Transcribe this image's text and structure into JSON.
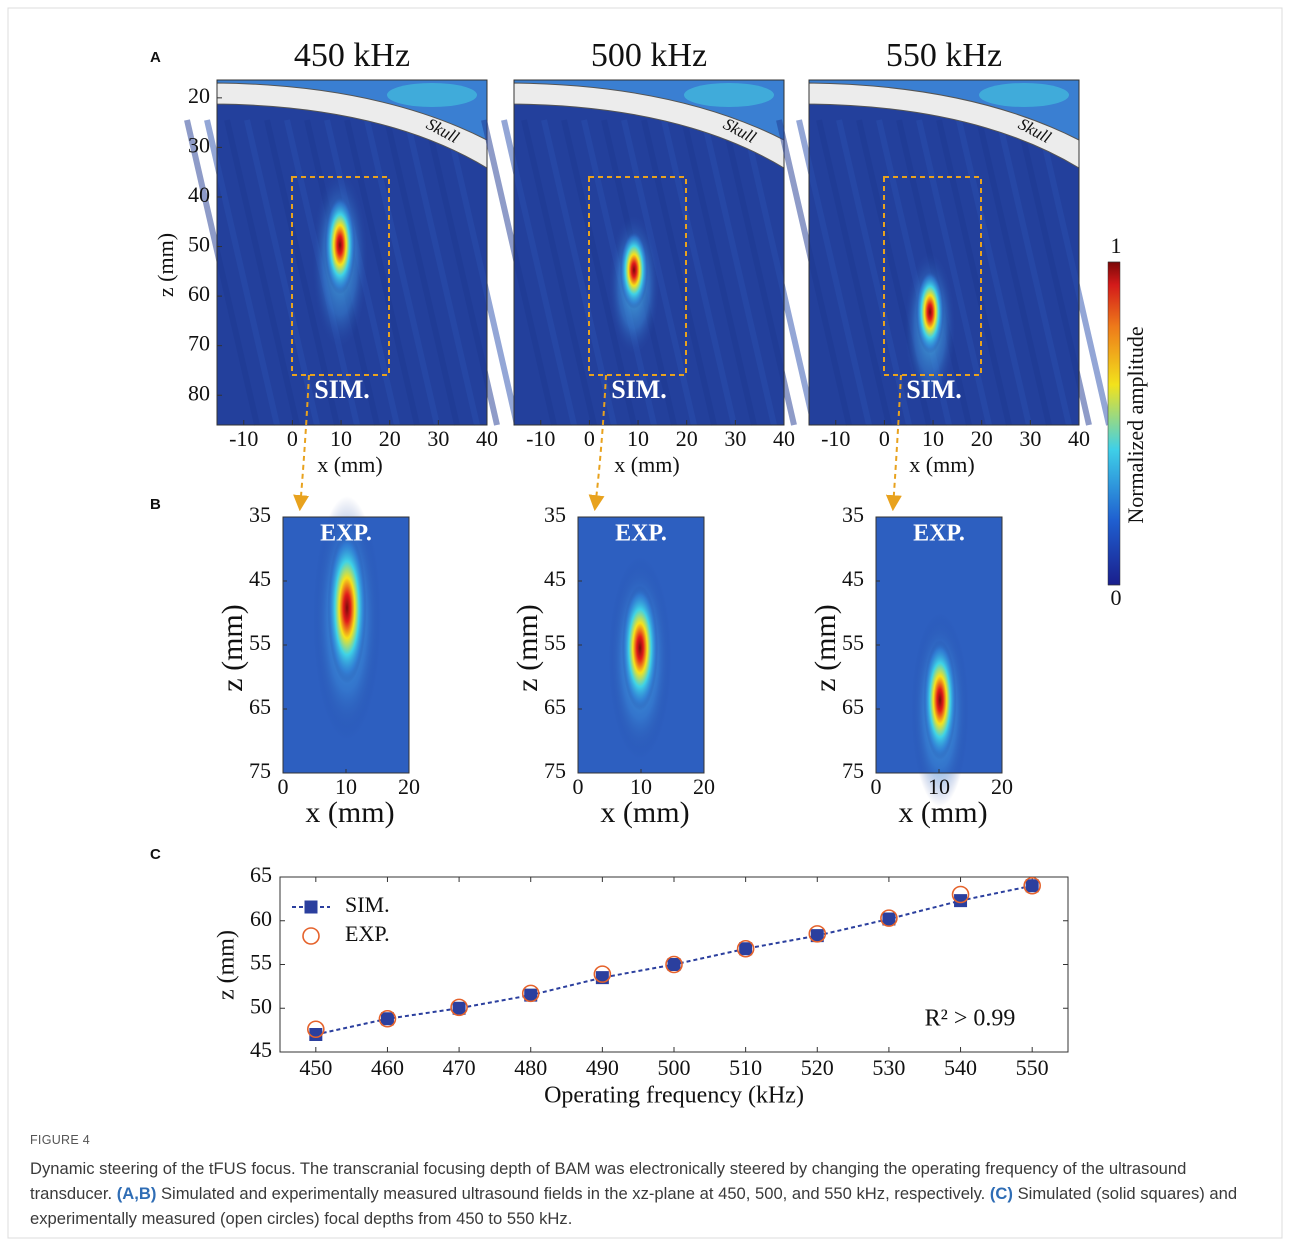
{
  "panel_labels": [
    "A",
    "B",
    "C"
  ],
  "panel_a": {
    "titles": [
      "450 kHz",
      "500 kHz",
      "550 kHz"
    ],
    "label": "SIM.",
    "skull_label": "Skull",
    "xlabel": "x (mm)",
    "ylabel": "z (mm)",
    "xlim": [
      -15.5,
      40
    ],
    "ylim": [
      16.4,
      86
    ],
    "xticks": [
      -10,
      0,
      10,
      20,
      30,
      40
    ],
    "yticks": [
      20,
      30,
      40,
      50,
      60,
      70,
      80
    ]
  },
  "panel_b": {
    "label": "EXP.",
    "xlabel": "x (mm)",
    "ylabel": "z (mm)",
    "xlim": [
      0,
      20
    ],
    "ylim": [
      35,
      75
    ],
    "xticks": [
      0,
      10,
      20
    ],
    "yticks": [
      35,
      45,
      55,
      65,
      75
    ]
  },
  "colorbar": {
    "label": "Normalized amplitude",
    "lim": [
      0,
      1
    ],
    "ticks": [
      0,
      1
    ]
  },
  "chart_data": {
    "type": "line",
    "xlabel": "Operating frequency (kHz)",
    "ylabel": "z (mm)",
    "x": [
      450,
      460,
      470,
      480,
      490,
      500,
      510,
      520,
      530,
      540,
      550
    ],
    "series": [
      {
        "name": "SIM.",
        "color": "#2b3f9e",
        "marker": "square",
        "linestyle": "dashed",
        "values": [
          47,
          48.8,
          50,
          51.5,
          53.5,
          55,
          56.8,
          58.3,
          60.2,
          62.3,
          64
        ]
      },
      {
        "name": "EXP.",
        "color": "#e5622b",
        "marker": "circle",
        "linestyle": "none",
        "values": [
          47.6,
          48.8,
          50.1,
          51.7,
          53.9,
          55,
          56.8,
          58.5,
          60.3,
          63,
          64
        ]
      }
    ],
    "xlim": [
      445,
      555
    ],
    "ylim": [
      45,
      65
    ],
    "xticks": [
      450,
      460,
      470,
      480,
      490,
      500,
      510,
      520,
      530,
      540,
      550
    ],
    "yticks": [
      45,
      50,
      55,
      60,
      65
    ],
    "legend": "upper left",
    "annotation": "R² > 0.99"
  },
  "caption": {
    "figure_label": "FIGURE 4",
    "parts": [
      "Dynamic steering of the tFUS focus. The transcranial focusing depth of BAM was electronically steered by changing the operating frequency of the ultrasound transducer. ",
      "(A,B)",
      " Simulated and experimentally measured ultrasound fields in the xz-plane at 450, 500, and 550 kHz, respectively. ",
      "(C)",
      " Simulated (solid squares) and experimentally measured (open circles) focal depths from 450 to 550 kHz."
    ]
  }
}
